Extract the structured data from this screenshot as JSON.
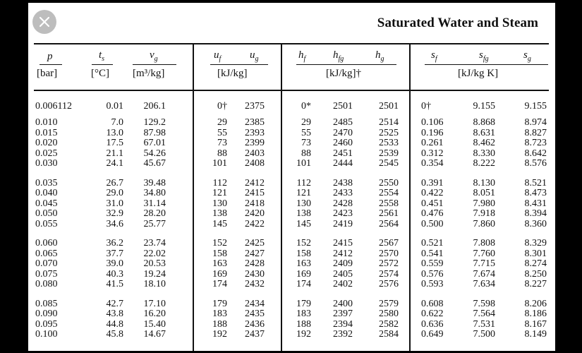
{
  "title": "Saturated Water and Steam",
  "close_icon": "close-icon",
  "headers": {
    "p": "p",
    "p_unit": "[bar]",
    "ts": "t",
    "ts_sub": "s",
    "ts_unit": "[°C]",
    "vg": "v",
    "vg_sub": "g",
    "vg_unit": "[m³/kg]",
    "uf": "u",
    "uf_sub": "f",
    "ug": "u",
    "ug_sub": "g",
    "u_unit": "[kJ/kg]",
    "hf": "h",
    "hf_sub": "f",
    "hfg": "h",
    "hfg_sub": "fg",
    "hg": "h",
    "hg_sub": "g",
    "h_unit": "[kJ/kg]†",
    "sf": "s",
    "sf_sub": "f",
    "sfg": "s",
    "sfg_sub": "fg",
    "sg": "s",
    "sg_sub": "g",
    "s_unit": "[kJ/kg K]"
  },
  "rows": [
    {
      "p": "0.006112",
      "ts": "0.01",
      "vg": "206.1",
      "uf": "0†",
      "ug": "2375",
      "hf": "0*",
      "hfg": "2501",
      "hg": "2501",
      "sf": "0†",
      "sfg": "9.155",
      "sg": "9.155"
    },
    {
      "p": "0.010",
      "ts": "7.0",
      "vg": "129.2",
      "uf": "29",
      "ug": "2385",
      "hf": "29",
      "hfg": "2485",
      "hg": "2514",
      "sf": "0.106",
      "sfg": "8.868",
      "sg": "8.974"
    },
    {
      "p": "0.015",
      "ts": "13.0",
      "vg": "87.98",
      "uf": "55",
      "ug": "2393",
      "hf": "55",
      "hfg": "2470",
      "hg": "2525",
      "sf": "0.196",
      "sfg": "8.631",
      "sg": "8.827"
    },
    {
      "p": "0.020",
      "ts": "17.5",
      "vg": "67.01",
      "uf": "73",
      "ug": "2399",
      "hf": "73",
      "hfg": "2460",
      "hg": "2533",
      "sf": "0.261",
      "sfg": "8.462",
      "sg": "8.723"
    },
    {
      "p": "0.025",
      "ts": "21.1",
      "vg": "54.26",
      "uf": "88",
      "ug": "2403",
      "hf": "88",
      "hfg": "2451",
      "hg": "2539",
      "sf": "0.312",
      "sfg": "8.330",
      "sg": "8.642"
    },
    {
      "p": "0.030",
      "ts": "24.1",
      "vg": "45.67",
      "uf": "101",
      "ug": "2408",
      "hf": "101",
      "hfg": "2444",
      "hg": "2545",
      "sf": "0.354",
      "sfg": "8.222",
      "sg": "8.576"
    },
    {
      "p": "0.035",
      "ts": "26.7",
      "vg": "39.48",
      "uf": "112",
      "ug": "2412",
      "hf": "112",
      "hfg": "2438",
      "hg": "2550",
      "sf": "0.391",
      "sfg": "8.130",
      "sg": "8.521"
    },
    {
      "p": "0.040",
      "ts": "29.0",
      "vg": "34.80",
      "uf": "121",
      "ug": "2415",
      "hf": "121",
      "hfg": "2433",
      "hg": "2554",
      "sf": "0.422",
      "sfg": "8.051",
      "sg": "8.473"
    },
    {
      "p": "0.045",
      "ts": "31.0",
      "vg": "31.14",
      "uf": "130",
      "ug": "2418",
      "hf": "130",
      "hfg": "2428",
      "hg": "2558",
      "sf": "0.451",
      "sfg": "7.980",
      "sg": "8.431"
    },
    {
      "p": "0.050",
      "ts": "32.9",
      "vg": "28.20",
      "uf": "138",
      "ug": "2420",
      "hf": "138",
      "hfg": "2423",
      "hg": "2561",
      "sf": "0.476",
      "sfg": "7.918",
      "sg": "8.394"
    },
    {
      "p": "0.055",
      "ts": "34.6",
      "vg": "25.77",
      "uf": "145",
      "ug": "2422",
      "hf": "145",
      "hfg": "2419",
      "hg": "2564",
      "sf": "0.500",
      "sfg": "7.860",
      "sg": "8.360"
    },
    {
      "p": "0.060",
      "ts": "36.2",
      "vg": "23.74",
      "uf": "152",
      "ug": "2425",
      "hf": "152",
      "hfg": "2415",
      "hg": "2567",
      "sf": "0.521",
      "sfg": "7.808",
      "sg": "8.329"
    },
    {
      "p": "0.065",
      "ts": "37.7",
      "vg": "22.02",
      "uf": "158",
      "ug": "2427",
      "hf": "158",
      "hfg": "2412",
      "hg": "2570",
      "sf": "0.541",
      "sfg": "7.760",
      "sg": "8.301"
    },
    {
      "p": "0.070",
      "ts": "39.0",
      "vg": "20.53",
      "uf": "163",
      "ug": "2428",
      "hf": "163",
      "hfg": "2409",
      "hg": "2572",
      "sf": "0.559",
      "sfg": "7.715",
      "sg": "8.274"
    },
    {
      "p": "0.075",
      "ts": "40.3",
      "vg": "19.24",
      "uf": "169",
      "ug": "2430",
      "hf": "169",
      "hfg": "2405",
      "hg": "2574",
      "sf": "0.576",
      "sfg": "7.674",
      "sg": "8.250"
    },
    {
      "p": "0.080",
      "ts": "41.5",
      "vg": "18.10",
      "uf": "174",
      "ug": "2432",
      "hf": "174",
      "hfg": "2402",
      "hg": "2576",
      "sf": "0.593",
      "sfg": "7.634",
      "sg": "8.227"
    },
    {
      "p": "0.085",
      "ts": "42.7",
      "vg": "17.10",
      "uf": "179",
      "ug": "2434",
      "hf": "179",
      "hfg": "2400",
      "hg": "2579",
      "sf": "0.608",
      "sfg": "7.598",
      "sg": "8.206"
    },
    {
      "p": "0.090",
      "ts": "43.8",
      "vg": "16.20",
      "uf": "183",
      "ug": "2435",
      "hf": "183",
      "hfg": "2397",
      "hg": "2580",
      "sf": "0.622",
      "sfg": "7.564",
      "sg": "8.186"
    },
    {
      "p": "0.095",
      "ts": "44.8",
      "vg": "15.40",
      "uf": "188",
      "ug": "2436",
      "hf": "188",
      "hfg": "2394",
      "hg": "2582",
      "sf": "0.636",
      "sfg": "7.531",
      "sg": "8.167"
    },
    {
      "p": "0.100",
      "ts": "45.8",
      "vg": "14.67",
      "uf": "192",
      "ug": "2437",
      "hf": "192",
      "hfg": "2392",
      "hg": "2584",
      "sf": "0.649",
      "sfg": "7.500",
      "sg": "8.149"
    }
  ]
}
